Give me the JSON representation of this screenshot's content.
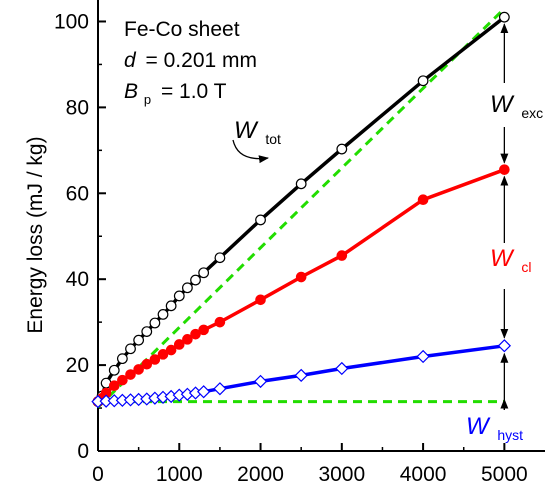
{
  "chart_data": {
    "type": "line",
    "ylabel": "Energy loss (mJ / kg)",
    "xlabel": "",
    "xlim": [
      0,
      5500
    ],
    "ylim": [
      0,
      105
    ],
    "xticks": [
      "0",
      "1000",
      "2000",
      "3000",
      "4000",
      "5000"
    ],
    "yticks": [
      "0",
      "20",
      "40",
      "60",
      "80",
      "100"
    ],
    "xtick_values": [
      0,
      1000,
      2000,
      3000,
      4000,
      5000
    ],
    "ytick_values": [
      0,
      20,
      40,
      60,
      80,
      100
    ],
    "annotation_lines": [
      "Fe-Co sheet",
      "= 0.201 mm",
      "= 1.0 T"
    ],
    "annotation_symbols": {
      "d": "d",
      "B": "B",
      "B_sub": "p"
    },
    "series": [
      {
        "key": "W_tot",
        "label_main": "W",
        "label_sub": "tot",
        "color": "#000000",
        "marker": "open-circle",
        "x": [
          0,
          50,
          100,
          200,
          300,
          400,
          500,
          600,
          700,
          800,
          900,
          1000,
          1100,
          1200,
          1300,
          1500,
          2000,
          2500,
          3000,
          4000,
          5000
        ],
        "y": [
          11.5,
          12.8,
          15.8,
          18.8,
          21.5,
          23.8,
          25.8,
          27.8,
          29.8,
          31.8,
          33.8,
          36.1,
          38.0,
          39.8,
          41.5,
          45.0,
          53.8,
          62.2,
          70.3,
          86.2,
          101.0
        ]
      },
      {
        "key": "W_cl",
        "label_main": "W",
        "label_sub": "cl",
        "color": "#ff0000",
        "marker": "filled-circle",
        "x": [
          0,
          50,
          100,
          200,
          300,
          400,
          500,
          600,
          700,
          800,
          900,
          1000,
          1100,
          1200,
          1300,
          1500,
          2000,
          2500,
          3000,
          4000,
          5000
        ],
        "y": [
          11.5,
          12.3,
          13.5,
          15.2,
          16.5,
          17.8,
          19.0,
          20.2,
          21.3,
          22.5,
          23.5,
          24.8,
          26.0,
          27.2,
          28.2,
          30.0,
          35.2,
          40.5,
          45.5,
          58.5,
          65.5
        ]
      },
      {
        "key": "W_hyst",
        "label_main": "W",
        "label_sub": "hyst",
        "color": "#0000ff",
        "marker": "open-diamond",
        "x": [
          0,
          100,
          200,
          300,
          400,
          500,
          600,
          700,
          800,
          900,
          1000,
          1100,
          1200,
          1300,
          1500,
          2000,
          2500,
          3000,
          4000,
          5000
        ],
        "y": [
          11.5,
          11.6,
          11.7,
          11.8,
          11.9,
          12.0,
          12.1,
          12.3,
          12.5,
          12.7,
          13.0,
          13.2,
          13.5,
          13.8,
          14.5,
          16.2,
          17.6,
          19.2,
          22.0,
          24.5
        ]
      }
    ],
    "reference_lines": [
      {
        "color": "#22dd00",
        "style": "dashed",
        "x": [
          0,
          5000
        ],
        "y": [
          11.5,
          11.5
        ]
      },
      {
        "color": "#22dd00",
        "style": "dashed",
        "x": [
          0,
          5000
        ],
        "y": [
          10.2,
          103.0
        ]
      }
    ],
    "labels": [
      {
        "key": "W_exc",
        "main": "W",
        "sub": "exc",
        "color": "#000000"
      }
    ]
  }
}
